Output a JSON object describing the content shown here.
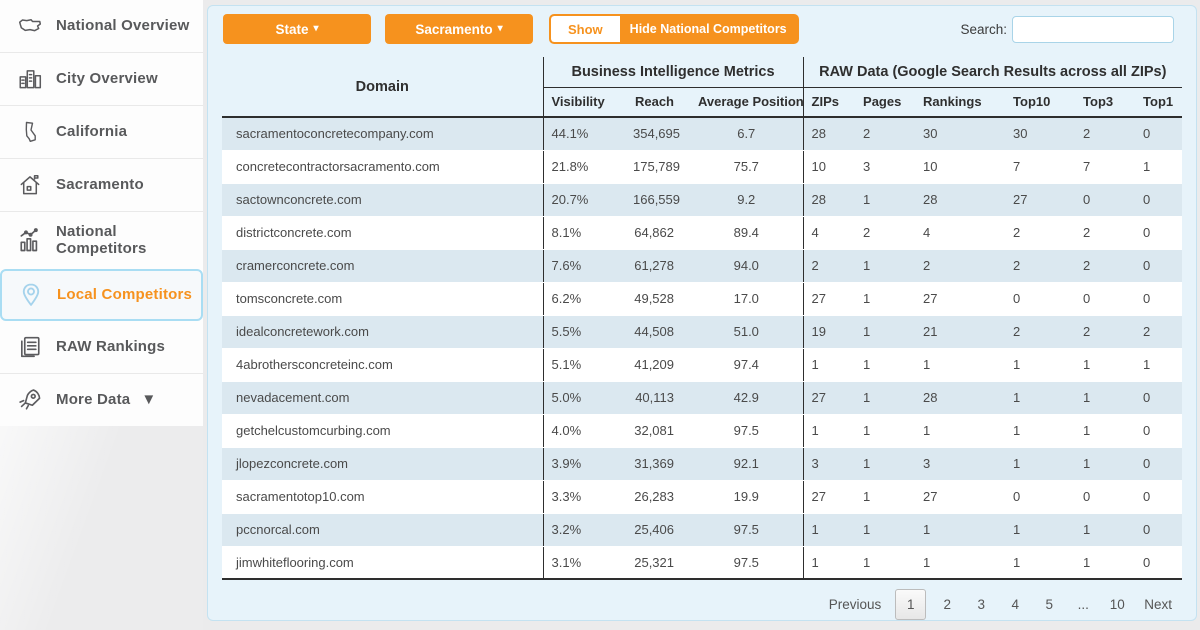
{
  "sidebar": {
    "items": [
      {
        "label": "National Overview",
        "icon": "usa-map-icon",
        "active": false
      },
      {
        "label": "City Overview",
        "icon": "city-buildings-icon",
        "active": false
      },
      {
        "label": "California",
        "icon": "california-state-icon",
        "active": false
      },
      {
        "label": "Sacramento",
        "icon": "house-icon",
        "active": false
      },
      {
        "label": "National Competitors",
        "icon": "bar-chart-icon",
        "active": false
      },
      {
        "label": "Local Competitors",
        "icon": "location-pin-icon",
        "active": true
      },
      {
        "label": "RAW Rankings",
        "icon": "documents-icon",
        "active": false
      },
      {
        "label": "More Data",
        "icon": "rocket-icon",
        "active": false,
        "caret": "▼"
      }
    ]
  },
  "toolbar": {
    "state_label": "State",
    "city_label": "Sacramento",
    "dropdown_caret": "▾",
    "toggle": {
      "show_label": "Show",
      "hide_label": "Hide National Competitors"
    },
    "search": {
      "label": "Search:",
      "value": "",
      "placeholder": ""
    }
  },
  "table": {
    "group_headers": {
      "domain": "Domain",
      "bi": "Business Intelligence Metrics",
      "raw": "RAW Data (Google Search Results across all ZIPs)"
    },
    "columns": [
      "Visibility",
      "Reach",
      "Average Position",
      "ZIPs",
      "Pages",
      "Rankings",
      "Top10",
      "Top3",
      "Top1"
    ],
    "rows": [
      {
        "domain": "sacramentoconcretecompany.com",
        "visibility": "44.1%",
        "reach": "354,695",
        "avg_position": "6.7",
        "zips": "28",
        "pages": "2",
        "rankings": "30",
        "top10": "30",
        "top3": "2",
        "top1": "0"
      },
      {
        "domain": "concretecontractorsacramento.com",
        "visibility": "21.8%",
        "reach": "175,789",
        "avg_position": "75.7",
        "zips": "10",
        "pages": "3",
        "rankings": "10",
        "top10": "7",
        "top3": "7",
        "top1": "1"
      },
      {
        "domain": "sactownconcrete.com",
        "visibility": "20.7%",
        "reach": "166,559",
        "avg_position": "9.2",
        "zips": "28",
        "pages": "1",
        "rankings": "28",
        "top10": "27",
        "top3": "0",
        "top1": "0"
      },
      {
        "domain": "districtconcrete.com",
        "visibility": "8.1%",
        "reach": "64,862",
        "avg_position": "89.4",
        "zips": "4",
        "pages": "2",
        "rankings": "4",
        "top10": "2",
        "top3": "2",
        "top1": "0"
      },
      {
        "domain": "cramerconcrete.com",
        "visibility": "7.6%",
        "reach": "61,278",
        "avg_position": "94.0",
        "zips": "2",
        "pages": "1",
        "rankings": "2",
        "top10": "2",
        "top3": "2",
        "top1": "0"
      },
      {
        "domain": "tomsconcrete.com",
        "visibility": "6.2%",
        "reach": "49,528",
        "avg_position": "17.0",
        "zips": "27",
        "pages": "1",
        "rankings": "27",
        "top10": "0",
        "top3": "0",
        "top1": "0"
      },
      {
        "domain": "idealconcretework.com",
        "visibility": "5.5%",
        "reach": "44,508",
        "avg_position": "51.0",
        "zips": "19",
        "pages": "1",
        "rankings": "21",
        "top10": "2",
        "top3": "2",
        "top1": "2"
      },
      {
        "domain": "4abrothersconcreteinc.com",
        "visibility": "5.1%",
        "reach": "41,209",
        "avg_position": "97.4",
        "zips": "1",
        "pages": "1",
        "rankings": "1",
        "top10": "1",
        "top3": "1",
        "top1": "1"
      },
      {
        "domain": "nevadacement.com",
        "visibility": "5.0%",
        "reach": "40,113",
        "avg_position": "42.9",
        "zips": "27",
        "pages": "1",
        "rankings": "28",
        "top10": "1",
        "top3": "1",
        "top1": "0"
      },
      {
        "domain": "getchelcustomcurbing.com",
        "visibility": "4.0%",
        "reach": "32,081",
        "avg_position": "97.5",
        "zips": "1",
        "pages": "1",
        "rankings": "1",
        "top10": "1",
        "top3": "1",
        "top1": "0"
      },
      {
        "domain": "jlopezconcrete.com",
        "visibility": "3.9%",
        "reach": "31,369",
        "avg_position": "92.1",
        "zips": "3",
        "pages": "1",
        "rankings": "3",
        "top10": "1",
        "top3": "1",
        "top1": "0"
      },
      {
        "domain": "sacramentotop10.com",
        "visibility": "3.3%",
        "reach": "26,283",
        "avg_position": "19.9",
        "zips": "27",
        "pages": "1",
        "rankings": "27",
        "top10": "0",
        "top3": "0",
        "top1": "0"
      },
      {
        "domain": "pccnorcal.com",
        "visibility": "3.2%",
        "reach": "25,406",
        "avg_position": "97.5",
        "zips": "1",
        "pages": "1",
        "rankings": "1",
        "top10": "1",
        "top3": "1",
        "top1": "0"
      },
      {
        "domain": "jimwhiteflooring.com",
        "visibility": "3.1%",
        "reach": "25,321",
        "avg_position": "97.5",
        "zips": "1",
        "pages": "1",
        "rankings": "1",
        "top10": "1",
        "top3": "1",
        "top1": "0"
      }
    ]
  },
  "pagination": {
    "previous_label": "Previous",
    "pages": [
      "1",
      "2",
      "3",
      "4",
      "5",
      "...",
      "10"
    ],
    "current_page": "1",
    "next_label": "Next"
  },
  "colors": {
    "accent_orange": "#F6921E",
    "panel_background": "#E7F3FA",
    "panel_border": "#C4E2F1",
    "row_stripe": "#DBE8F0",
    "table_border_dark": "#2E2E2E",
    "active_item_border": "#A9DDF3",
    "sidebar_text": "#58595B"
  }
}
